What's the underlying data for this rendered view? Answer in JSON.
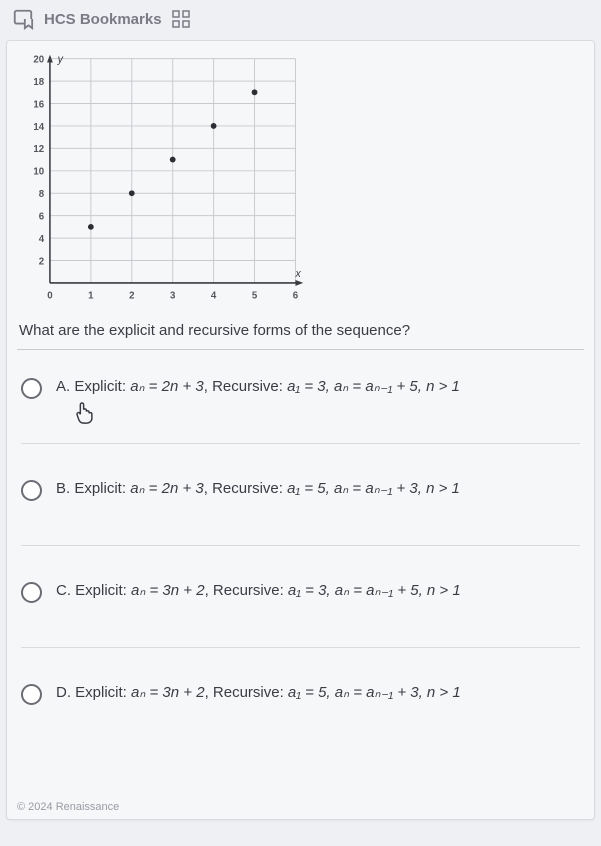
{
  "header": {
    "bookmarks_label": "HCS Bookmarks"
  },
  "chart": {
    "type": "scatter",
    "xlim": [
      0,
      6
    ],
    "ylim": [
      0,
      20
    ],
    "xtick_step": 1,
    "ytick_step": 2,
    "x_ticks": [
      "0",
      "1",
      "2",
      "3",
      "4",
      "5",
      "6"
    ],
    "y_ticks": [
      "2",
      "4",
      "6",
      "8",
      "10",
      "12",
      "14",
      "16",
      "18",
      "20"
    ],
    "grid_color": "#c8cacd",
    "axis_color": "#3a3a42",
    "point_color": "#2d2d34",
    "background_color": "#f6f7f9",
    "axis_labels": {
      "x": "x",
      "y": "y"
    },
    "points": [
      {
        "x": 1,
        "y": 5
      },
      {
        "x": 2,
        "y": 8
      },
      {
        "x": 3,
        "y": 11
      },
      {
        "x": 4,
        "y": 14
      },
      {
        "x": 5,
        "y": 17
      }
    ],
    "marker_radius": 3
  },
  "question": {
    "text": "What are the explicit and recursive forms of the sequence?"
  },
  "choices": [
    {
      "letter": "A",
      "prefix": "A. Explicit: ",
      "explicit": "aₙ = 2n + 3",
      "rec_prefix": ", Recursive: ",
      "recursive": "a₁ = 3, aₙ = aₙ₋₁ + 5, n > 1"
    },
    {
      "letter": "B",
      "prefix": "B. Explicit: ",
      "explicit": "aₙ = 2n + 3",
      "rec_prefix": ", Recursive: ",
      "recursive": "a₁ = 5, aₙ = aₙ₋₁ + 3, n > 1"
    },
    {
      "letter": "C",
      "prefix": "C. Explicit: ",
      "explicit": "aₙ = 3n + 2",
      "rec_prefix": ", Recursive: ",
      "recursive": "a₁ = 3, aₙ = aₙ₋₁ + 5, n > 1"
    },
    {
      "letter": "D",
      "prefix": "D. Explicit: ",
      "explicit": "aₙ = 3n + 2",
      "rec_prefix": ", Recursive: ",
      "recursive": "a₁ = 5, aₙ = aₙ₋₁ + 3, n > 1"
    }
  ],
  "footer": {
    "copyright": "© 2024 Renaissance"
  }
}
